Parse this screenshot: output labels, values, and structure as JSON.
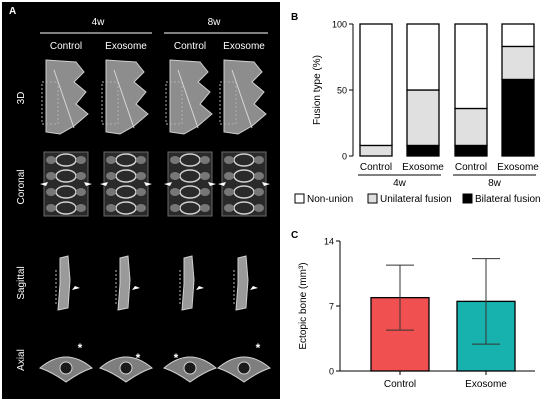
{
  "panel_a": {
    "letter": "A",
    "groups": [
      "4w",
      "8w"
    ],
    "columns": [
      "Control",
      "Exosome",
      "Control",
      "Exosome"
    ],
    "rows": [
      "3D",
      "Coronal",
      "Sagittal",
      "Axial"
    ],
    "asterisk": "*"
  },
  "colors": {
    "nonunion": "#ffffff",
    "unilateral": "#e0e0e0",
    "bilateral": "#000000",
    "control_bar": "#f0504f",
    "exosome_bar": "#17b2ae",
    "panel_a_bg": "#000000"
  },
  "chart_data": [
    {
      "panel": "B",
      "type": "bar",
      "stacked": true,
      "categories": [
        "Control",
        "Exosome",
        "Control",
        "Exosome"
      ],
      "groups": [
        {
          "label": "4w",
          "categories": [
            0,
            1
          ]
        },
        {
          "label": "8w",
          "categories": [
            2,
            3
          ]
        }
      ],
      "series": [
        {
          "name": "Bilateral fusion",
          "values": [
            0,
            8,
            8,
            58
          ]
        },
        {
          "name": "Unilateral fusion",
          "values": [
            8,
            42,
            28,
            25
          ]
        },
        {
          "name": "Non-union",
          "values": [
            92,
            50,
            64,
            17
          ]
        }
      ],
      "ylabel": "Fusion type (%)",
      "ylim": [
        0,
        100
      ],
      "yticks": [
        0,
        50,
        100
      ],
      "legend": "bottom",
      "grid": false
    },
    {
      "panel": "C",
      "type": "bar",
      "categories": [
        "Control",
        "Exosome"
      ],
      "values": [
        7.9,
        7.5
      ],
      "errors": [
        3.5,
        4.6
      ],
      "ylabel": "Ectopic bone (mm³)",
      "ylim": [
        0,
        14
      ],
      "yticks": [
        0,
        7,
        14
      ],
      "grid": false
    }
  ]
}
